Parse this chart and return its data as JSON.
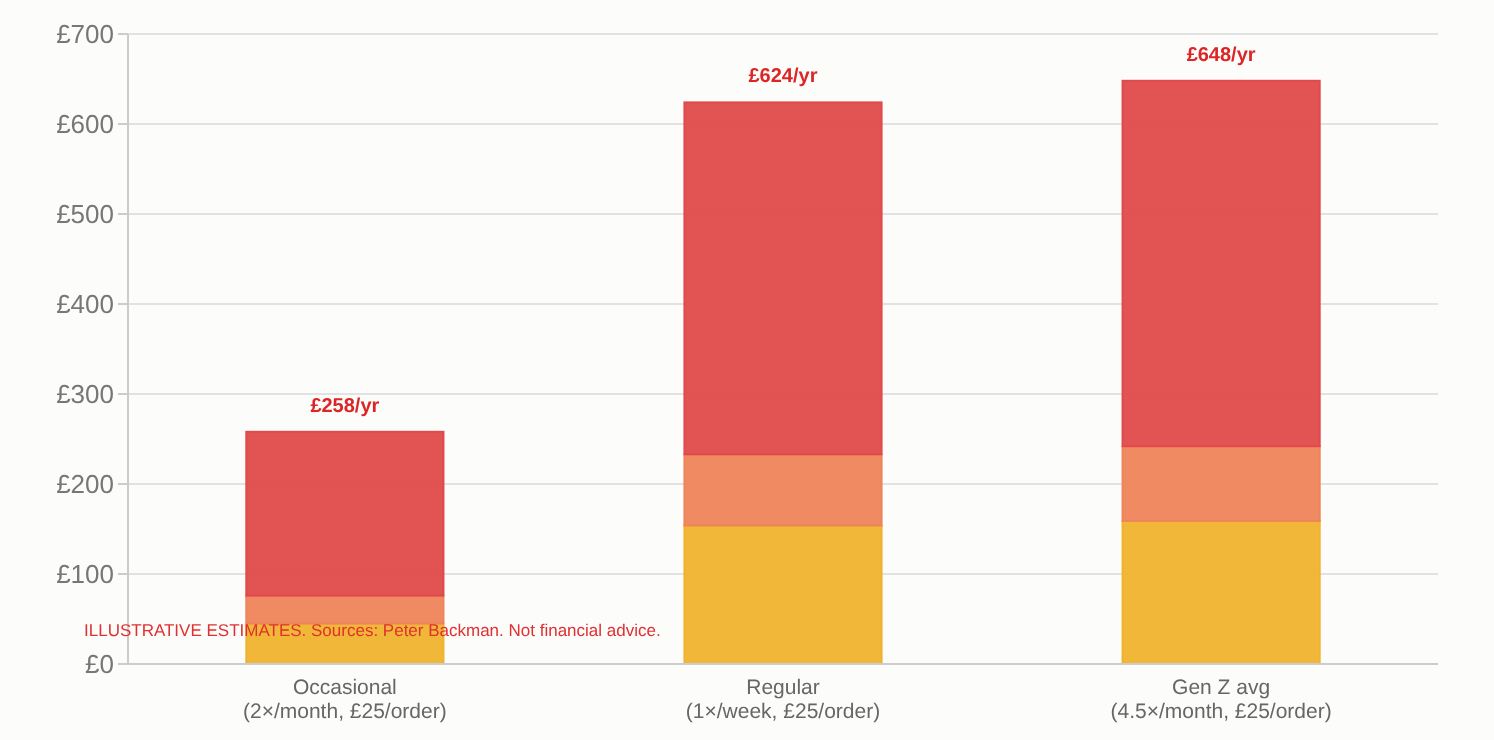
{
  "chart_data": {
    "type": "bar",
    "stacked": true,
    "categories": [
      "Occasional\n(2×/month, £25/order)",
      "Regular\n(1×/week, £25/order)",
      "Gen Z avg\n(4.5×/month, £25/order)"
    ],
    "series": [
      {
        "color": "#f0b32e",
        "values": [
          45,
          154,
          159
        ]
      },
      {
        "color": "#ee845a",
        "values": [
          31,
          79,
          83
        ]
      },
      {
        "color": "#e04a4a",
        "values": [
          182,
          391,
          406
        ]
      }
    ],
    "totals": [
      "£258/yr",
      "£624/yr",
      "£648/yr"
    ],
    "ylim": [
      0,
      700
    ],
    "yticks": [
      {
        "value": 0,
        "label": "£0"
      },
      {
        "value": 100,
        "label": "£100"
      },
      {
        "value": 200,
        "label": "£200"
      },
      {
        "value": 300,
        "label": "£300"
      },
      {
        "value": 400,
        "label": "£400"
      },
      {
        "value": 500,
        "label": "£500"
      },
      {
        "value": 600,
        "label": "£600"
      },
      {
        "value": 700,
        "label": "£700"
      }
    ],
    "grid": true,
    "annotations": [
      "ILLUSTRATIVE ESTIMATES. Sources: Peter Backman. Not financial advice."
    ]
  }
}
